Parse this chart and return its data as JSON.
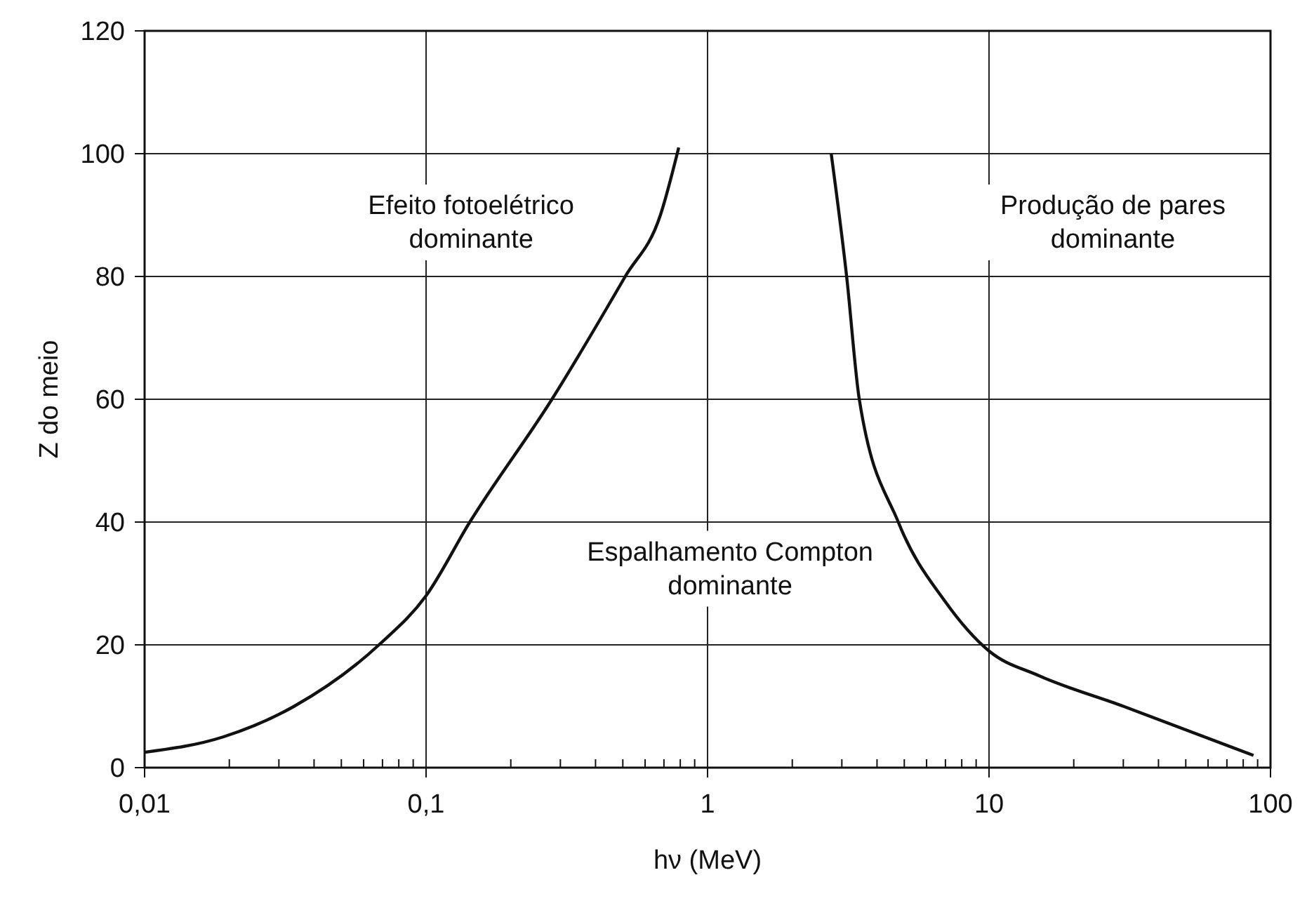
{
  "chart_data": {
    "type": "line",
    "xlabel": "hν (MeV)",
    "ylabel": "Z do meio",
    "log": "x",
    "grid": true,
    "marker": "none",
    "line_style": "solid",
    "xlim": [
      0.01,
      100
    ],
    "ylim": [
      0,
      120
    ],
    "xticks": [
      {
        "value": 0.01,
        "label": "0,01"
      },
      {
        "value": 0.02,
        "label": null
      },
      {
        "value": 0.03,
        "label": null
      },
      {
        "value": 0.04,
        "label": null
      },
      {
        "value": 0.05,
        "label": null
      },
      {
        "value": 0.06,
        "label": null
      },
      {
        "value": 0.07,
        "label": null
      },
      {
        "value": 0.08,
        "label": null
      },
      {
        "value": 0.09,
        "label": null
      },
      {
        "value": 0.1,
        "label": "0,1"
      },
      {
        "value": 0.2,
        "label": null
      },
      {
        "value": 0.3,
        "label": null
      },
      {
        "value": 0.4,
        "label": null
      },
      {
        "value": 0.5,
        "label": null
      },
      {
        "value": 0.6,
        "label": null
      },
      {
        "value": 0.7,
        "label": null
      },
      {
        "value": 0.8,
        "label": null
      },
      {
        "value": 0.9,
        "label": null
      },
      {
        "value": 1,
        "label": "1"
      },
      {
        "value": 2,
        "label": null
      },
      {
        "value": 3,
        "label": null
      },
      {
        "value": 4,
        "label": null
      },
      {
        "value": 5,
        "label": null
      },
      {
        "value": 6,
        "label": null
      },
      {
        "value": 7,
        "label": null
      },
      {
        "value": 8,
        "label": null
      },
      {
        "value": 9,
        "label": null
      },
      {
        "value": 10,
        "label": "10"
      },
      {
        "value": 20,
        "label": null
      },
      {
        "value": 30,
        "label": null
      },
      {
        "value": 40,
        "label": null
      },
      {
        "value": 50,
        "label": null
      },
      {
        "value": 60,
        "label": null
      },
      {
        "value": 70,
        "label": null
      },
      {
        "value": 80,
        "label": null
      },
      {
        "value": 90,
        "label": null
      },
      {
        "value": 100,
        "label": "100"
      }
    ],
    "yticks": [
      0,
      20,
      40,
      60,
      80,
      100,
      120
    ],
    "series": [
      {
        "color": "#111111",
        "x": [
          0.01,
          0.019,
          0.034,
          0.068,
          0.1,
          0.143,
          0.28,
          0.51,
          0.68,
          0.79
        ],
        "values": [
          2.5,
          5,
          10,
          20,
          28,
          40,
          60,
          80,
          90,
          101
        ]
      },
      {
        "color": "#111111",
        "x": [
          2.75,
          3.12,
          3.46,
          4.76,
          7,
          10,
          15,
          30,
          87
        ],
        "values": [
          100,
          80,
          60,
          40,
          27,
          19,
          15,
          10,
          2
        ]
      }
    ],
    "annotations": [
      "Efeito fotoelétrico\ndominante",
      "Espalhamento Compton\ndominante",
      "Produção de pares\ndominante"
    ]
  }
}
